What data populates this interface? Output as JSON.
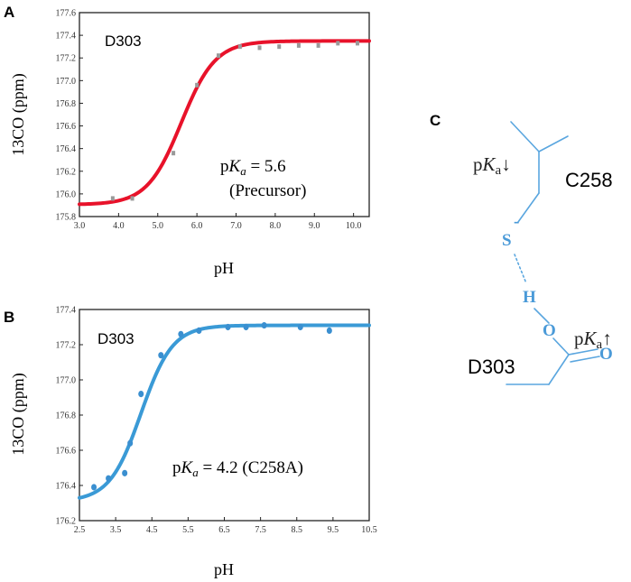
{
  "panels": {
    "A": {
      "letter": "A",
      "trace_label": "D303",
      "pka_prefix": "p",
      "pka_k": "K",
      "pka_sub": "a",
      "pka_value": " = 5.6",
      "pka_note": "(Precursor)"
    },
    "B": {
      "letter": "B",
      "trace_label": "D303",
      "pka_prefix": "p",
      "pka_k": "K",
      "pka_sub": "a",
      "pka_value": " = 4.2 (C258A)"
    },
    "C": {
      "letter": "C"
    }
  },
  "chart_data": [
    {
      "panel": "A",
      "type": "scatter",
      "xlabel": "pH",
      "ylabel": "13CO (ppm)",
      "xlim": [
        3.0,
        10.4
      ],
      "ylim": [
        175.8,
        177.6
      ],
      "xticks": [
        "3.0",
        "4.0",
        "5.0",
        "6.0",
        "7.0",
        "8.0",
        "9.0",
        "10.0"
      ],
      "yticks": [
        "175.8",
        "176.0",
        "176.2",
        "176.4",
        "176.6",
        "176.8",
        "177.0",
        "177.2",
        "177.4",
        "177.6"
      ],
      "series": [
        {
          "kind": "points",
          "color": "#9a9a9a",
          "x": [
            3.85,
            4.35,
            5.4,
            6.0,
            6.55,
            7.1,
            7.6,
            8.1,
            8.6,
            9.1,
            9.6,
            10.1
          ],
          "y": [
            175.96,
            175.96,
            176.36,
            176.96,
            177.22,
            177.3,
            177.29,
            177.3,
            177.31,
            177.31,
            177.33,
            177.33
          ]
        },
        {
          "kind": "fit",
          "color": "#e8122a",
          "pka": 5.6,
          "low": 175.905,
          "high": 177.35
        }
      ],
      "annotations": [
        "D303",
        "pKa = 5.6",
        "(Precursor)"
      ],
      "grid": false
    },
    {
      "panel": "B",
      "type": "scatter",
      "xlabel": "pH",
      "ylabel": "13CO (ppm)",
      "xlim": [
        2.5,
        10.5
      ],
      "ylim": [
        176.2,
        177.4
      ],
      "xticks": [
        "2.5",
        "3.5",
        "4.5",
        "5.5",
        "6.5",
        "7.5",
        "8.5",
        "9.5",
        "10.5"
      ],
      "xtick_values": [
        2.5,
        3.5,
        4.5,
        5.5,
        6.5,
        7.5,
        8.5,
        9.5,
        10.5
      ],
      "yticks": [
        "176.2",
        "176.4",
        "176.6",
        "176.8",
        "177.0",
        "177.2",
        "177.4"
      ],
      "series": [
        {
          "kind": "points",
          "color": "#3a8fd0",
          "x": [
            2.9,
            3.3,
            3.75,
            3.9,
            4.2,
            4.75,
            5.3,
            5.8,
            6.6,
            7.1,
            7.6,
            8.6,
            9.4
          ],
          "y": [
            176.39,
            176.44,
            176.47,
            176.64,
            176.92,
            177.14,
            177.26,
            177.28,
            177.3,
            177.3,
            177.31,
            177.3,
            177.28
          ]
        },
        {
          "kind": "fit",
          "color": "#3a9ad6",
          "pka": 4.2,
          "low": 176.31,
          "high": 177.31
        }
      ],
      "annotations": [
        "D303",
        "pKa = 4.2 (C258A)"
      ],
      "grid": false
    }
  ],
  "molecule": {
    "residue_top": "C258",
    "residue_bottom": "D303",
    "atom_s": "S",
    "charge": "-",
    "atom_h": "H",
    "atom_o1": "O",
    "atom_o2": "O",
    "pka_top_p": "p",
    "pka_top_k": "K",
    "pka_top_sub": "a",
    "pka_top_arrow": "↓",
    "pka_bottom_p": "p",
    "pka_bottom_k": "K",
    "pka_bottom_sub": "a",
    "pka_bottom_arrow": "↑",
    "bond_color": "#5aa6df",
    "atom_color": "#4a9ad8"
  }
}
